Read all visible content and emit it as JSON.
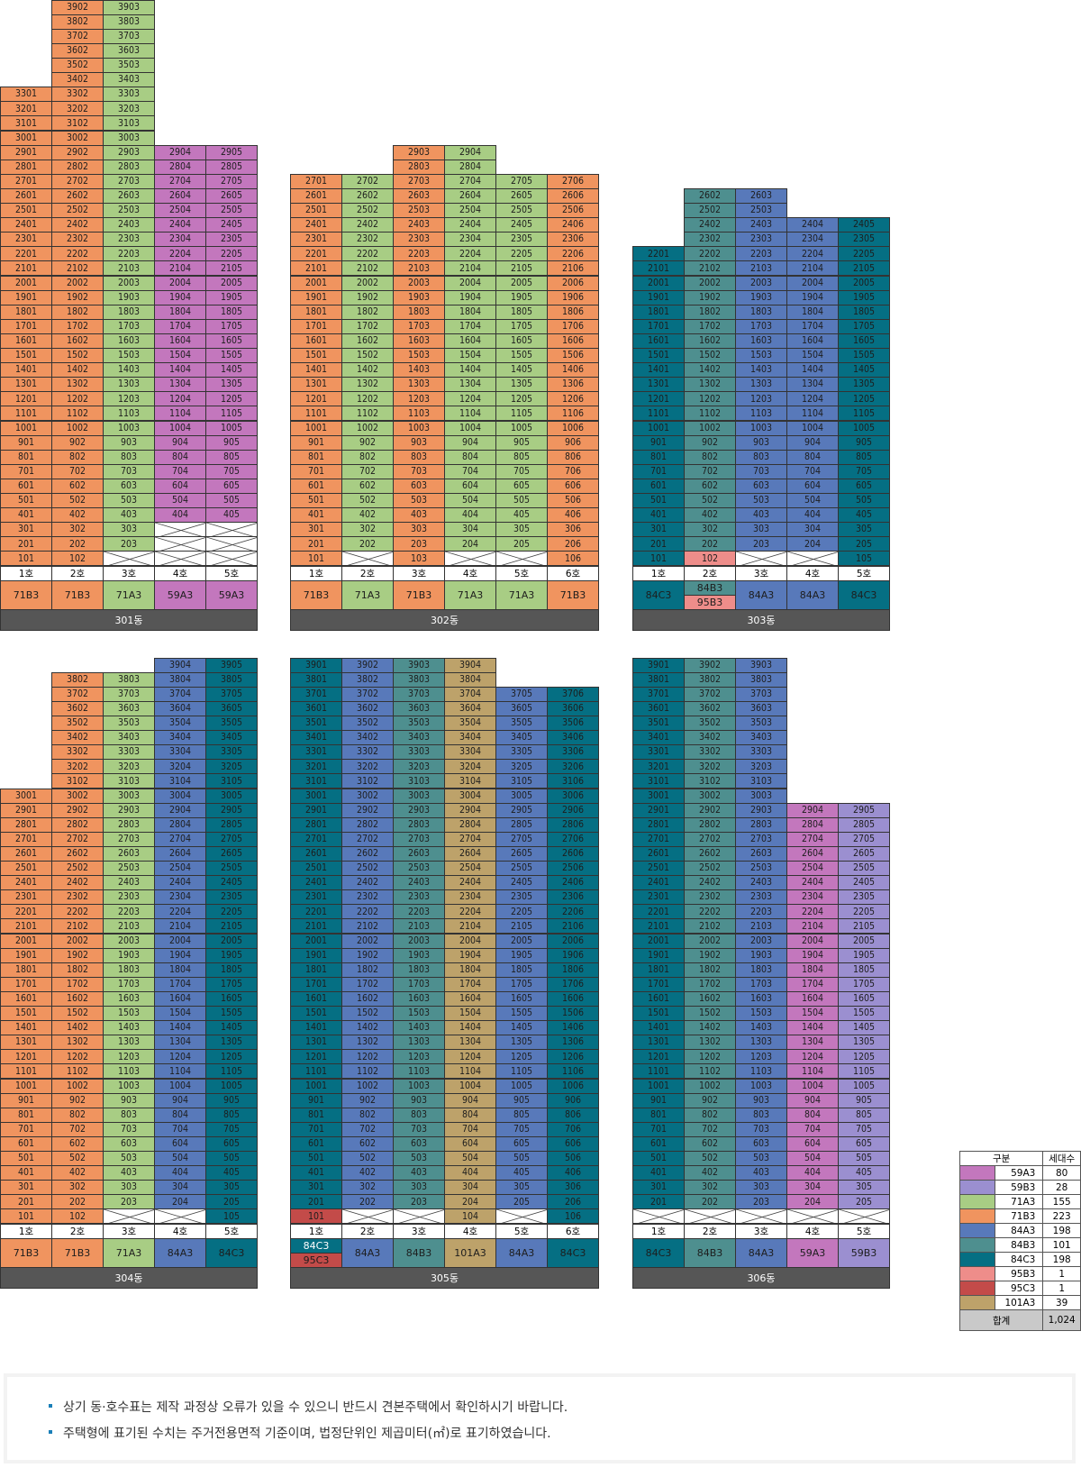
{
  "colors": {
    "59A3": "#c377bd",
    "59B3": "#9b8fd0",
    "71A3": "#a8cd84",
    "71B3": "#f0945f",
    "84A3": "#5879ba",
    "84B3": "#4e8f8f",
    "84C3": "#056f83",
    "95B3": "#ee8d8a",
    "95C3": "#c34b49",
    "101A3": "#bda26a"
  },
  "buildings": [
    {
      "name": "301동",
      "lines": [
        {
          "ho": "1호",
          "type": "71B3",
          "floors": [
            [
              1,
              33
            ]
          ],
          "x_floors": []
        },
        {
          "ho": "2호",
          "type": "71B3",
          "floors": [
            [
              1,
              39
            ]
          ],
          "x_floors": []
        },
        {
          "ho": "3호",
          "type": "71A3",
          "floors": [
            [
              2,
              39
            ]
          ],
          "x_floors": [
            1
          ]
        },
        {
          "ho": "4호",
          "type": "59A3",
          "floors": [
            [
              4,
              29
            ]
          ],
          "x_floors": [
            1,
            2,
            3
          ]
        },
        {
          "ho": "5호",
          "type": "59A3",
          "floors": [
            [
              4,
              29
            ]
          ],
          "x_floors": [
            1,
            2,
            3
          ]
        }
      ]
    },
    {
      "name": "302동",
      "lines": [
        {
          "ho": "1호",
          "type": "71B3",
          "floors": [
            [
              1,
              27
            ]
          ],
          "x_floors": []
        },
        {
          "ho": "2호",
          "type": "71A3",
          "floors": [
            [
              2,
              27
            ]
          ],
          "x_floors": [
            1
          ]
        },
        {
          "ho": "3호",
          "type": "71B3",
          "floors": [
            [
              1,
              29
            ]
          ],
          "x_floors": []
        },
        {
          "ho": "4호",
          "type": "71A3",
          "floors": [
            [
              2,
              29
            ]
          ],
          "x_floors": [
            1
          ]
        },
        {
          "ho": "5호",
          "type": "71A3",
          "floors": [
            [
              2,
              27
            ]
          ],
          "x_floors": [
            1
          ]
        },
        {
          "ho": "6호",
          "type": "71B3",
          "floors": [
            [
              1,
              27
            ]
          ],
          "x_floors": []
        }
      ]
    },
    {
      "name": "303동",
      "lines": [
        {
          "ho": "1호",
          "type": "84C3",
          "floors": [
            [
              1,
              22
            ]
          ],
          "x_floors": []
        },
        {
          "ho": "2호",
          "type": "84B3",
          "type2": "95B3",
          "floors": [
            [
              2,
              26
            ]
          ],
          "special": {
            "1": "95B3"
          },
          "x_floors": []
        },
        {
          "ho": "3호",
          "type": "84A3",
          "floors": [
            [
              2,
              26
            ]
          ],
          "x_floors": [
            1
          ]
        },
        {
          "ho": "4호",
          "type": "84A3",
          "floors": [
            [
              2,
              24
            ]
          ],
          "x_floors": [
            1
          ]
        },
        {
          "ho": "5호",
          "type": "84C3",
          "floors": [
            [
              1,
              24
            ]
          ],
          "x_floors": []
        }
      ]
    },
    {
      "name": "304동",
      "lines": [
        {
          "ho": "1호",
          "type": "71B3",
          "floors": [
            [
              1,
              30
            ]
          ],
          "x_floors": []
        },
        {
          "ho": "2호",
          "type": "71B3",
          "floors": [
            [
              1,
              38
            ]
          ],
          "x_floors": []
        },
        {
          "ho": "3호",
          "type": "71A3",
          "floors": [
            [
              2,
              38
            ]
          ],
          "x_floors": [
            1
          ]
        },
        {
          "ho": "4호",
          "type": "84A3",
          "floors": [
            [
              2,
              39
            ]
          ],
          "x_floors": [
            1
          ]
        },
        {
          "ho": "5호",
          "type": "84C3",
          "floors": [
            [
              1,
              39
            ]
          ],
          "x_floors": []
        }
      ]
    },
    {
      "name": "305동",
      "lines": [
        {
          "ho": "1호",
          "type": "84C3",
          "type2": "95C3",
          "floors": [
            [
              2,
              39
            ]
          ],
          "special": {
            "1": "95C3"
          },
          "x_floors": []
        },
        {
          "ho": "2호",
          "type": "84A3",
          "floors": [
            [
              2,
              39
            ]
          ],
          "x_floors": [
            1
          ]
        },
        {
          "ho": "3호",
          "type": "84B3",
          "floors": [
            [
              2,
              39
            ]
          ],
          "x_floors": [
            1
          ]
        },
        {
          "ho": "4호",
          "type": "101A3",
          "floors": [
            [
              1,
              39
            ]
          ],
          "x_floors": []
        },
        {
          "ho": "5호",
          "type": "84A3",
          "floors": [
            [
              2,
              37
            ]
          ],
          "x_floors": [
            1
          ]
        },
        {
          "ho": "6호",
          "type": "84C3",
          "floors": [
            [
              1,
              37
            ]
          ],
          "x_floors": []
        }
      ]
    },
    {
      "name": "306동",
      "lines": [
        {
          "ho": "1호",
          "type": "84C3",
          "floors": [
            [
              2,
              39
            ]
          ],
          "x_floors": [
            1
          ]
        },
        {
          "ho": "2호",
          "type": "84B3",
          "floors": [
            [
              2,
              39
            ]
          ],
          "x_floors": [
            1
          ]
        },
        {
          "ho": "3호",
          "type": "84A3",
          "floors": [
            [
              2,
              39
            ]
          ],
          "x_floors": [
            1
          ]
        },
        {
          "ho": "4호",
          "type": "59A3",
          "floors": [
            [
              2,
              29
            ]
          ],
          "x_floors": [
            1
          ]
        },
        {
          "ho": "5호",
          "type": "59B3",
          "floors": [
            [
              2,
              29
            ]
          ],
          "x_floors": [
            1
          ]
        }
      ]
    }
  ],
  "legend": {
    "header_type": "구분",
    "header_count": "세대수",
    "rows": [
      {
        "type": "59A3",
        "count": "80"
      },
      {
        "type": "59B3",
        "count": "28"
      },
      {
        "type": "71A3",
        "count": "155"
      },
      {
        "type": "71B3",
        "count": "223"
      },
      {
        "type": "84A3",
        "count": "198"
      },
      {
        "type": "84B3",
        "count": "101"
      },
      {
        "type": "84C3",
        "count": "198"
      },
      {
        "type": "95B3",
        "count": "1"
      },
      {
        "type": "95C3",
        "count": "1"
      },
      {
        "type": "101A3",
        "count": "39"
      }
    ],
    "total_label": "합계",
    "total_count": "1,024"
  },
  "notes": [
    "상기 동·호수표는 제작 과정상 오류가 있을 수 있으니 반드시 견본주택에서 확인하시기 바랍니다.",
    "주택형에 표기된 수치는 주거전용면적 기준이며, 법정단위인 제곱미터(㎡)로 표기하였습니다."
  ]
}
